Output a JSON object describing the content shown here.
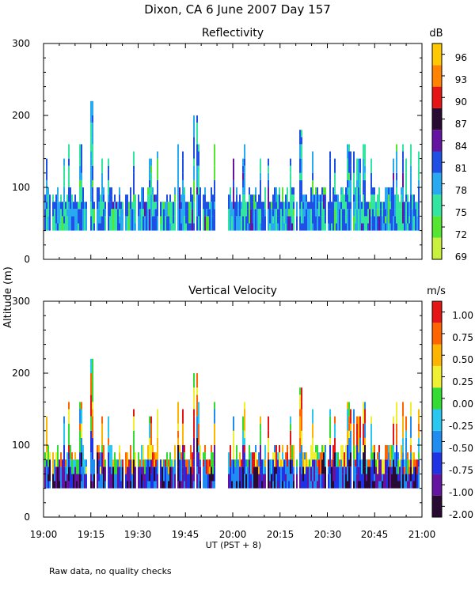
{
  "title": "Dixon, CA  6 June 2007  Day 157",
  "ylabel": "Altitude (m)",
  "xlabel": "UT  (PST + 8)",
  "footnote": "Raw data, no quality checks",
  "chart_data": [
    {
      "type": "heatmap",
      "title": "Reflectivity",
      "units": "dB",
      "x_range": [
        "19:00",
        "21:00"
      ],
      "x_tick_labels": [
        "19:00",
        "19:15",
        "19:30",
        "19:45",
        "20:00",
        "20:15",
        "20:30",
        "20:45",
        "21:00"
      ],
      "ylim": [
        0,
        300
      ],
      "y_tick_labels": [
        "0",
        "100",
        "200",
        "300"
      ],
      "colorbar": {
        "labels": [
          "69",
          "72",
          "75",
          "78",
          "81",
          "84",
          "87",
          "90",
          "93",
          "96"
        ],
        "colors": [
          "#c8f03c",
          "#55e632",
          "#32e6a0",
          "#28aaf0",
          "#1e50e6",
          "#6414a0",
          "#280a32",
          "#e61414",
          "#ff8200",
          "#ffc800"
        ]
      },
      "echo_base_m": 40,
      "data_gap_utc": [
        "19:54",
        "19:58"
      ],
      "max_echo_top_m": 220,
      "peaks": [
        {
          "time": "19:15",
          "top_m": 220
        },
        {
          "time": "19:48",
          "top_m": 200
        },
        {
          "time": "20:21",
          "top_m": 180
        }
      ]
    },
    {
      "type": "heatmap",
      "title": "Vertical Velocity",
      "units": "m/s",
      "x_range": [
        "19:00",
        "21:00"
      ],
      "x_tick_labels": [
        "19:00",
        "19:15",
        "19:30",
        "19:45",
        "20:00",
        "20:15",
        "20:30",
        "20:45",
        "21:00"
      ],
      "ylim": [
        0,
        300
      ],
      "y_tick_labels": [
        "0",
        "100",
        "200",
        "300"
      ],
      "colorbar": {
        "labels": [
          "-2.00",
          "-1.00",
          "-0.75",
          "-0.50",
          "-0.25",
          "0.00",
          "0.25",
          "0.50",
          "0.75",
          "1.00"
        ],
        "colors": [
          "#280a32",
          "#6414a0",
          "#1e32e6",
          "#1e8cf0",
          "#28c8f0",
          "#32dc32",
          "#f0f032",
          "#ffb400",
          "#ff6400",
          "#e61414"
        ]
      },
      "echo_base_m": 40,
      "data_gap_utc": [
        "19:54",
        "19:58"
      ],
      "max_echo_top_m": 220,
      "peaks": [
        {
          "time": "19:15",
          "top_m": 220
        },
        {
          "time": "19:48",
          "top_m": 200
        },
        {
          "time": "20:21",
          "top_m": 180
        }
      ]
    }
  ]
}
